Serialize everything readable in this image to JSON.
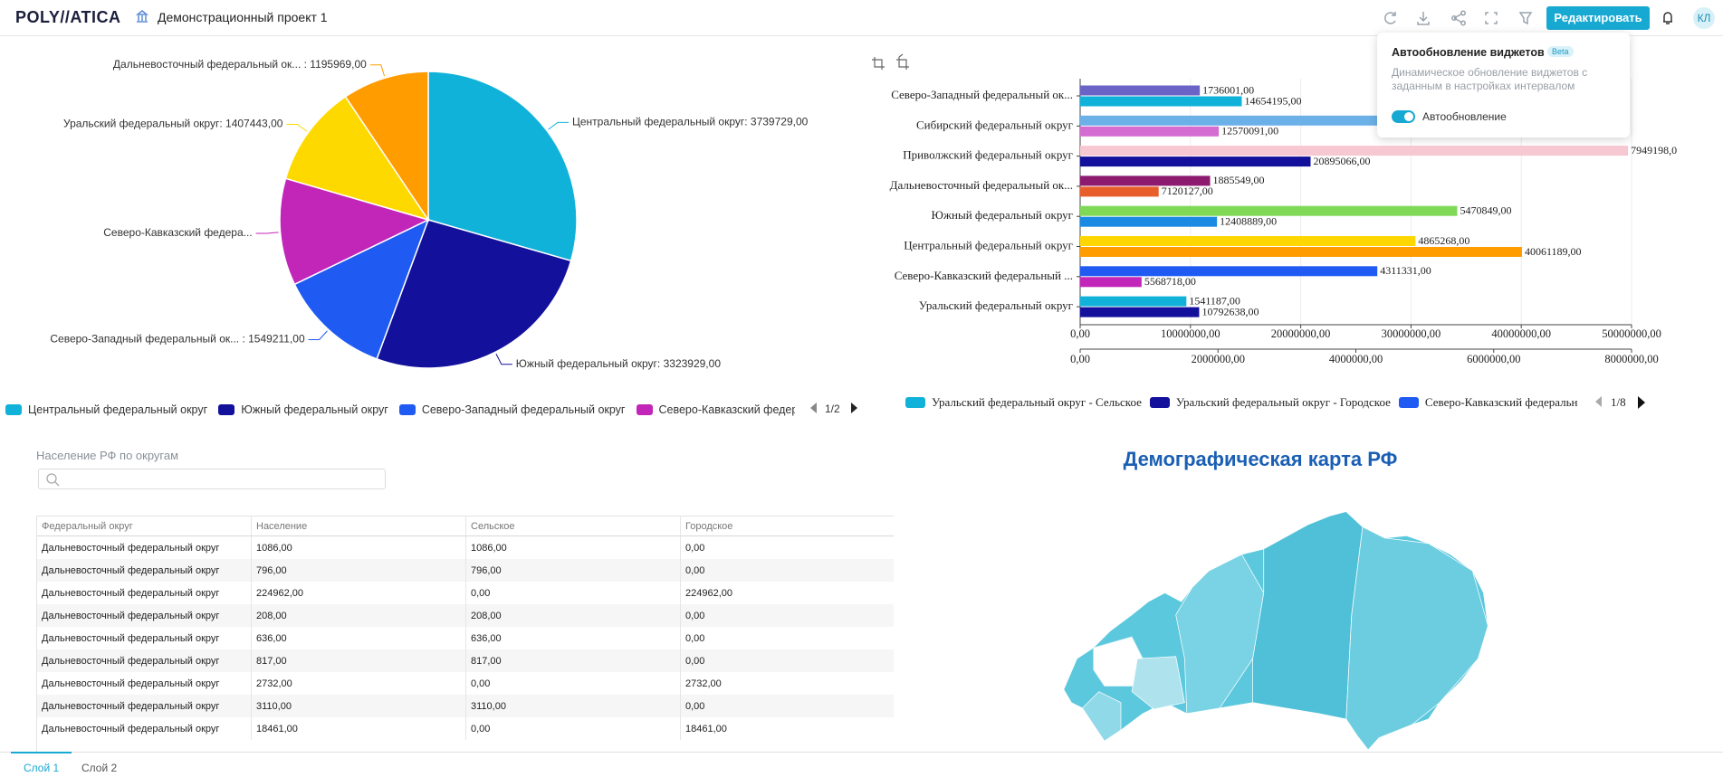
{
  "header": {
    "logo": "POLY//ATICA",
    "project": "Демонстрационный проект 1",
    "edit_button": "Редактировать",
    "avatar": "КЛ"
  },
  "popup": {
    "title": "Автообновление виджетов",
    "badge": "Beta",
    "description": "Динамическое обновление виджетов с заданным в настройках интервалом",
    "toggle_label": "Автообновление",
    "toggle_on": true
  },
  "chart_data": [
    {
      "type": "pie",
      "categories": [
        "Центральный федеральный округ",
        "Южный федеральный округ",
        "Северо-Западный федеральный округ",
        "Северо-Кавказский федеральн",
        null,
        null
      ],
      "values": [
        3739729,
        3323929,
        1549211,
        1480000,
        1407443,
        1195969
      ],
      "value_labels": [
        "Центральный федеральный округ: 3739729,00",
        "Южный федеральный округ: 3323929,00",
        "Северо-Западный федеральный ок... : 1549211,00",
        "Северо-Кавказский федера...",
        "Уральский федеральный округ: 1407443,00",
        "Дальневосточный федеральный ок... : 1195969,00"
      ],
      "colors": [
        "#11b2d9",
        "#13109b",
        "#1f5bf2",
        "#c226b9",
        "#fdd900",
        "#ff9c00"
      ],
      "legend_page": "1/2"
    },
    {
      "type": "bar",
      "orientation": "horizontal",
      "categories": [
        "Северо-Западный федеральный ок...",
        "Сибирский федеральный округ",
        "Приволжский федеральный округ",
        "Дальневосточный федеральный ок...",
        "Южный федеральный округ",
        "Центральный федеральный округ",
        "Северо-Кавказский федеральный ...",
        "Уральский федеральный округ"
      ],
      "series": [
        {
          "axis": "x2",
          "values": [
            1736001,
            4500000,
            7949198,
            1885549,
            5470849,
            4865268,
            4311331,
            1541187
          ],
          "value_labels": [
            "1736001,00",
            null,
            "7949198,0",
            "1885549,00",
            "5470849,00",
            "4865268,00",
            "4311331,00",
            "1541187,00"
          ],
          "colors": [
            "#6b63c6",
            "#6cb0e8",
            "#f8c8d2",
            "#8c1a6e",
            "#7fd957",
            "#ffd700",
            "#1f5bf2",
            "#11b2d9"
          ]
        },
        {
          "values": [
            14654195,
            12570091,
            20895066,
            7120127,
            12408889,
            40061189,
            5568718,
            10792638
          ],
          "value_labels": [
            "14654195,00",
            "12570091,00",
            "20895066,00",
            "7120127,00",
            "12408889,00",
            "40061189,00",
            "5568718,00",
            "10792638,00"
          ],
          "colors": [
            "#11b2d9",
            "#d56cd1",
            "#13109b",
            "#e85e2b",
            "#1b8ae2",
            "#ff9c00",
            "#c226b9",
            "#13109b"
          ]
        }
      ],
      "xlim": [
        0,
        50000000
      ],
      "xticks": [
        {
          "value": 0,
          "label": "0,00"
        },
        {
          "value": 10000000,
          "label": "10000000,00"
        },
        {
          "value": 20000000,
          "label": "20000000,00"
        },
        {
          "value": 30000000,
          "label": "30000000,00"
        },
        {
          "value": 40000000,
          "label": "40000000,00"
        },
        {
          "value": 50000000,
          "label": "50000000,00"
        }
      ],
      "x2lim": [
        0,
        8000000
      ],
      "x2ticks": [
        {
          "value": 0,
          "label": "0,00"
        },
        {
          "value": 2000000,
          "label": "2000000,00"
        },
        {
          "value": 4000000,
          "label": "4000000,00"
        },
        {
          "value": 6000000,
          "label": "6000000,00"
        },
        {
          "value": 8000000,
          "label": "8000000,00"
        }
      ],
      "grid": true,
      "legend_items": [
        {
          "label": "Уральский федеральный округ - Сельское",
          "color": "#11b2d9"
        },
        {
          "label": "Уральский федеральный округ - Городское",
          "color": "#13109b"
        },
        {
          "label": "Северо-Кавказский федеральн",
          "color": "#1f5bf2"
        }
      ],
      "legend_page": "1/8"
    }
  ],
  "table": {
    "title": "Население РФ по округам",
    "columns": [
      "Федеральный округ",
      "Население",
      "Сельское",
      "Городское"
    ],
    "rows": [
      [
        "Дальневосточный федеральный округ",
        "1086,00",
        "1086,00",
        "0,00"
      ],
      [
        "Дальневосточный федеральный округ",
        "796,00",
        "796,00",
        "0,00"
      ],
      [
        "Дальневосточный федеральный округ",
        "224962,00",
        "0,00",
        "224962,00"
      ],
      [
        "Дальневосточный федеральный округ",
        "208,00",
        "208,00",
        "0,00"
      ],
      [
        "Дальневосточный федеральный округ",
        "636,00",
        "636,00",
        "0,00"
      ],
      [
        "Дальневосточный федеральный округ",
        "817,00",
        "817,00",
        "0,00"
      ],
      [
        "Дальневосточный федеральный округ",
        "2732,00",
        "0,00",
        "2732,00"
      ],
      [
        "Дальневосточный федеральный округ",
        "3110,00",
        "3110,00",
        "0,00"
      ],
      [
        "Дальневосточный федеральный округ",
        "18461,00",
        "0,00",
        "18461,00"
      ]
    ]
  },
  "map": {
    "title": "Демографическая карта РФ"
  },
  "tabs": [
    {
      "label": "Слой 1",
      "active": true
    },
    {
      "label": "Слой 2",
      "active": false
    }
  ]
}
